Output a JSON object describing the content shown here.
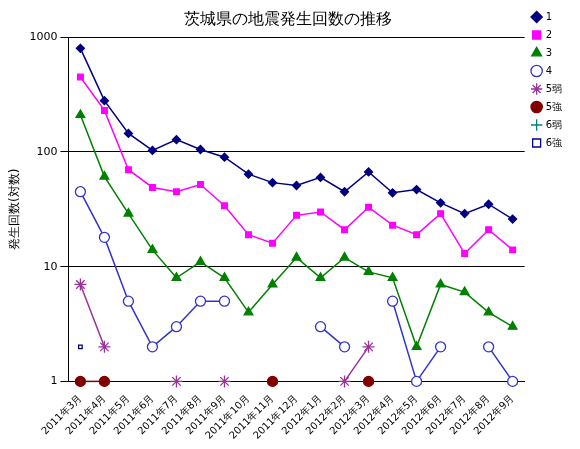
{
  "chart_data": {
    "type": "line",
    "title": "茨城県の地震発生回数の推移",
    "y_label": "発生回数(対数)",
    "log": "y",
    "grid": "y",
    "legend": "right",
    "ylim": [
      1,
      1000
    ],
    "yticks": [
      1,
      10,
      100,
      1000
    ],
    "categories": [
      "2011年3月",
      "2011年4月",
      "2011年5月",
      "2011年6月",
      "2011年7月",
      "2011年8月",
      "2011年9月",
      "2011年10月",
      "2011年11月",
      "2011年12月",
      "2012年1月",
      "2012年2月",
      "2012年3月",
      "2012年4月",
      "2012年5月",
      "2012年6月",
      "2012年7月",
      "2012年8月",
      "2012年9月"
    ],
    "series": [
      {
        "name": "1",
        "color": "#000080",
        "marker": "diamond",
        "values": [
          800,
          280,
          145,
          103,
          128,
          105,
          90,
          64,
          54,
          51,
          60,
          45,
          67,
          44,
          47,
          36,
          29,
          35,
          26
        ]
      },
      {
        "name": "2",
        "color": "#ff00ff",
        "marker": "square",
        "values": [
          450,
          230,
          70,
          49,
          45,
          52,
          34,
          19,
          16,
          28,
          30,
          21,
          33,
          23,
          19,
          29,
          13,
          21,
          14
        ]
      },
      {
        "name": "3",
        "color": "#008000",
        "marker": "triangle",
        "values": [
          210,
          61,
          29,
          14,
          8,
          11,
          8,
          4,
          7,
          12,
          8,
          12,
          9,
          8,
          2,
          7,
          6,
          4,
          3
        ]
      },
      {
        "name": "4",
        "color": "#3333cc",
        "marker": "open circle",
        "values": [
          45,
          18,
          5,
          2,
          3,
          5,
          5,
          null,
          null,
          null,
          3,
          2,
          null,
          5,
          1,
          2,
          null,
          2,
          1
        ]
      },
      {
        "name": "5弱",
        "color": "#993399",
        "marker": "asterisk",
        "values": [
          7,
          2,
          null,
          null,
          1,
          null,
          1,
          null,
          null,
          null,
          null,
          1,
          2,
          null,
          null,
          null,
          null,
          null,
          null
        ]
      },
      {
        "name": "5強",
        "color": "#800000",
        "marker": "circle",
        "values": [
          1,
          1,
          null,
          null,
          null,
          null,
          null,
          null,
          1,
          null,
          null,
          null,
          1,
          null,
          null,
          null,
          null,
          null,
          null
        ]
      },
      {
        "name": "6弱",
        "color": "#008080",
        "marker": "plus",
        "values": [
          null,
          null,
          null,
          null,
          null,
          null,
          null,
          null,
          null,
          null,
          null,
          null,
          null,
          null,
          null,
          null,
          null,
          null,
          null
        ]
      },
      {
        "name": "6強",
        "color": "#000080",
        "marker": "small square",
        "values": [
          2,
          null,
          null,
          null,
          null,
          null,
          null,
          null,
          null,
          null,
          null,
          null,
          null,
          null,
          null,
          null,
          null,
          null,
          null
        ]
      }
    ]
  }
}
